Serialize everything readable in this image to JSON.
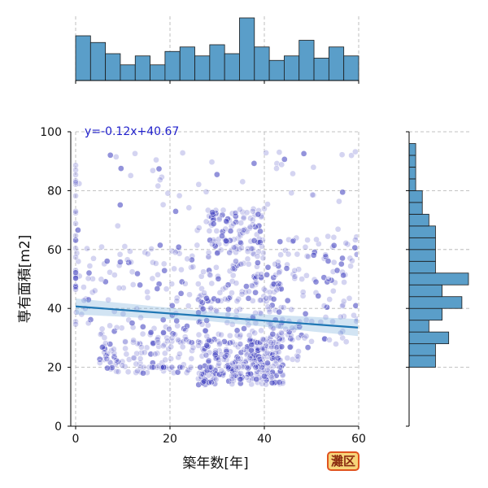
{
  "chart_data": {
    "type": "scatter",
    "xlabel": "築年数[年]",
    "ylabel": "専有面積[m2]",
    "xlim": [
      0,
      60
    ],
    "ylim": [
      0,
      100
    ],
    "xticks": [
      0,
      20,
      40,
      60
    ],
    "yticks": [
      0,
      20,
      40,
      60,
      80,
      100
    ],
    "grid": true,
    "regression": {
      "label": "y=-0.12x+40.67",
      "slope": -0.12,
      "intercept": 40.67
    },
    "colors": {
      "point": "#3b3bbd",
      "hist": "#5a9ec9",
      "line": "#1f77b4",
      "equation": "#2222cc"
    },
    "top_hist": {
      "bin_width": 4,
      "x_start": 0,
      "counts": [
        20,
        17,
        12,
        7,
        11,
        7,
        13,
        15,
        11,
        16,
        12,
        28,
        15,
        9,
        11,
        18,
        10,
        15,
        11
      ]
    },
    "right_hist": {
      "bin_width": 4,
      "y_start": 0,
      "counts": [
        0,
        0,
        0,
        0,
        0,
        4,
        4,
        6,
        3,
        5,
        8,
        5,
        9,
        4,
        4,
        4,
        4,
        3,
        2,
        2,
        1,
        1,
        1,
        1,
        0,
        0
      ]
    },
    "scatter_points": {
      "n": 1200,
      "note_placeholder_do_not_render": null
    }
  },
  "badge": {
    "label": "灘区"
  }
}
